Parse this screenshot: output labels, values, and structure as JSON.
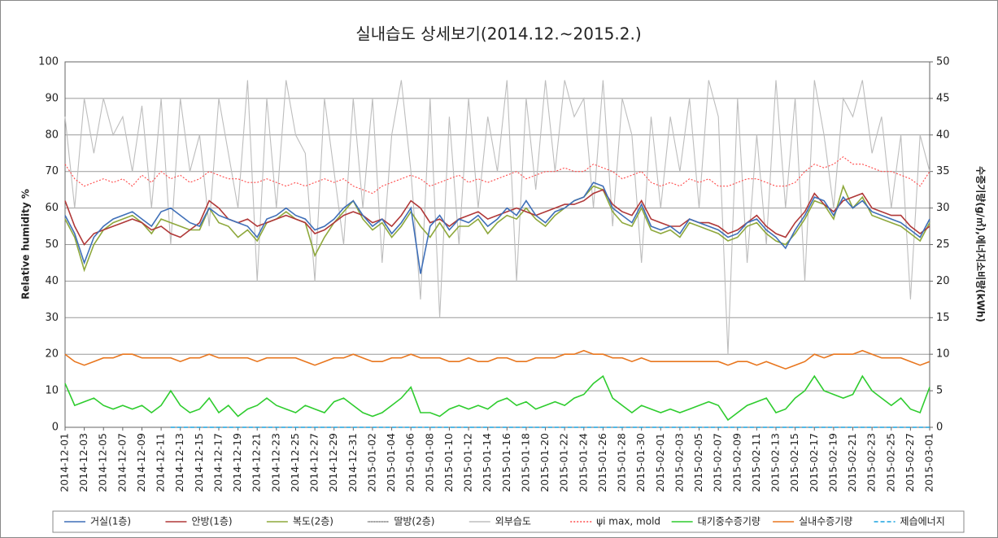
{
  "chart_data": {
    "type": "line",
    "title": "실내습도 상세보기(2014.12.~2015.2.)",
    "y_label": "Relative humidity %",
    "y2_label": "수증기량(g/㎥),에너지소비량(kWh)",
    "ylim": [
      0,
      100
    ],
    "yticks": [
      0,
      10,
      20,
      30,
      40,
      50,
      60,
      70,
      80,
      90,
      100
    ],
    "y2lim": [
      0,
      50
    ],
    "y2ticks": [
      0,
      5,
      10,
      15,
      20,
      25,
      30,
      35,
      40,
      45,
      50
    ],
    "grid": true,
    "legend": "bottom",
    "categories": [
      "2014-12-01",
      null,
      "2014-12-03",
      null,
      "2014-12-05",
      null,
      "2014-12-07",
      null,
      "2014-12-09",
      null,
      "2014-12-11",
      null,
      "2014-12-13",
      null,
      "2014-12-15",
      null,
      "2014-12-17",
      null,
      "2014-12-19",
      null,
      "2014-12-21",
      null,
      "2014-12-23",
      null,
      "2014-12-25",
      null,
      "2014-12-27",
      null,
      "2014-12-29",
      null,
      "2014-12-31",
      null,
      "2015-01-02",
      null,
      "2015-01-04",
      null,
      "2015-01-06",
      null,
      "2015-01-08",
      null,
      "2015-01-10",
      null,
      "2015-01-12",
      null,
      "2015-01-14",
      null,
      "2015-01-16",
      null,
      "2015-01-18",
      null,
      "2015-01-20",
      null,
      "2015-01-22",
      null,
      "2015-01-24",
      null,
      "2015-01-26",
      null,
      "2015-01-28",
      null,
      "2015-01-30",
      null,
      "2015-02-01",
      null,
      "2015-02-03",
      null,
      "2015-02-05",
      null,
      "2015-02-07",
      null,
      "2015-02-09",
      null,
      "2015-02-11",
      null,
      "2015-02-13",
      null,
      "2015-02-15",
      null,
      "2015-02-17",
      null,
      "2015-02-19",
      null,
      "2015-02-21",
      null,
      "2015-02-23",
      null,
      "2015-02-25",
      null,
      "2015-02-27",
      null,
      "2015-03-01"
    ],
    "series": [
      {
        "name": "거실(1층)",
        "color": "#3f6fb8",
        "dash": "none",
        "values": [
          58,
          53,
          45,
          52,
          55,
          57,
          58,
          59,
          57,
          55,
          59,
          60,
          58,
          56,
          55,
          60,
          58,
          57,
          56,
          55,
          52,
          57,
          58,
          60,
          58,
          57,
          54,
          55,
          57,
          60,
          62,
          58,
          55,
          57,
          53,
          56,
          60,
          42,
          55,
          58,
          54,
          57,
          56,
          58,
          55,
          57,
          60,
          58,
          62,
          58,
          56,
          59,
          60,
          62,
          63,
          67,
          66,
          60,
          58,
          56,
          61,
          55,
          54,
          55,
          53,
          57,
          56,
          55,
          54,
          52,
          53,
          56,
          57,
          54,
          52,
          49,
          54,
          58,
          63,
          62,
          58,
          63,
          60,
          62,
          59,
          58,
          57,
          56,
          54,
          52,
          57
        ]
      },
      {
        "name": "안방(1층)",
        "color": "#b03838",
        "dash": "none",
        "values": [
          62,
          55,
          50,
          53,
          54,
          55,
          56,
          57,
          56,
          54,
          55,
          53,
          52,
          54,
          56,
          62,
          60,
          57,
          56,
          57,
          55,
          56,
          57,
          58,
          57,
          56,
          53,
          54,
          56,
          58,
          59,
          58,
          56,
          57,
          55,
          58,
          62,
          60,
          56,
          57,
          55,
          57,
          58,
          59,
          57,
          58,
          59,
          60,
          59,
          58,
          59,
          60,
          61,
          61,
          62,
          64,
          65,
          61,
          59,
          58,
          62,
          57,
          56,
          55,
          55,
          57,
          56,
          56,
          55,
          53,
          54,
          56,
          58,
          55,
          53,
          52,
          56,
          59,
          64,
          61,
          59,
          62,
          63,
          64,
          60,
          59,
          58,
          58,
          55,
          53,
          55
        ]
      },
      {
        "name": "복도(2층)",
        "color": "#8ea83c",
        "dash": "none",
        "values": [
          57,
          52,
          43,
          50,
          54,
          56,
          57,
          58,
          56,
          53,
          57,
          56,
          55,
          54,
          54,
          60,
          56,
          55,
          52,
          54,
          51,
          56,
          57,
          59,
          57,
          56,
          47,
          52,
          56,
          59,
          62,
          57,
          54,
          56,
          52,
          55,
          59,
          55,
          52,
          56,
          52,
          55,
          55,
          57,
          53,
          56,
          58,
          57,
          60,
          57,
          55,
          58,
          60,
          62,
          63,
          66,
          65,
          59,
          56,
          55,
          60,
          54,
          53,
          54,
          52,
          56,
          55,
          54,
          53,
          51,
          52,
          55,
          56,
          53,
          51,
          50,
          53,
          57,
          62,
          61,
          57,
          66,
          60,
          63,
          58,
          57,
          56,
          55,
          53,
          51,
          56
        ]
      },
      {
        "name": "딸방(2층)",
        "color": "#333333",
        "dash": "1 1"
      },
      {
        "name": "외부습도",
        "color": "#bdbdbd",
        "dash": "none",
        "values": [
          85,
          60,
          90,
          75,
          90,
          80,
          85,
          70,
          88,
          60,
          90,
          50,
          90,
          70,
          80,
          55,
          90,
          75,
          60,
          95,
          40,
          90,
          60,
          95,
          80,
          75,
          40,
          90,
          70,
          50,
          90,
          60,
          90,
          45,
          80,
          95,
          70,
          35,
          90,
          30,
          85,
          50,
          90,
          60,
          85,
          70,
          95,
          40,
          90,
          65,
          95,
          70,
          95,
          85,
          90,
          60,
          95,
          55,
          90,
          80,
          45,
          85,
          60,
          85,
          70,
          90,
          60,
          95,
          85,
          20,
          90,
          45,
          80,
          50,
          95,
          60,
          90,
          40,
          95,
          80,
          60,
          90,
          85,
          95,
          75,
          85,
          60,
          80,
          35,
          80,
          70
        ]
      },
      {
        "name": "ψi max, mold",
        "color": "#ff4a4a",
        "dash": "2 2",
        "values": [
          72,
          68,
          66,
          67,
          68,
          67,
          68,
          66,
          69,
          67,
          70,
          68,
          69,
          67,
          68,
          70,
          69,
          68,
          68,
          67,
          67,
          68,
          67,
          66,
          67,
          66,
          67,
          68,
          67,
          68,
          66,
          65,
          64,
          66,
          67,
          68,
          69,
          68,
          66,
          67,
          68,
          69,
          67,
          68,
          67,
          68,
          69,
          70,
          68,
          69,
          70,
          70,
          71,
          70,
          70,
          72,
          71,
          70,
          68,
          69,
          70,
          67,
          66,
          67,
          66,
          68,
          67,
          68,
          66,
          66,
          67,
          68,
          68,
          67,
          66,
          66,
          67,
          70,
          72,
          71,
          72,
          74,
          72,
          72,
          71,
          70,
          70,
          69,
          68,
          66,
          70
        ]
      },
      {
        "name": "대기중수증기량",
        "color": "#2ecc2e",
        "dash": "none",
        "axis": "y2",
        "values": [
          6,
          3,
          3.5,
          4,
          3,
          2.5,
          3,
          2.5,
          3,
          2,
          3,
          5,
          3,
          2,
          2.5,
          4,
          2,
          3,
          1.5,
          2.5,
          3,
          4,
          3,
          2.5,
          2,
          3,
          2.5,
          2,
          3.5,
          4,
          3,
          2,
          1.5,
          2,
          3,
          4,
          5.5,
          2,
          2,
          1.5,
          2.5,
          3,
          2.5,
          3,
          2.5,
          3.5,
          4,
          3,
          3.5,
          2.5,
          3,
          3.5,
          3,
          4,
          4.5,
          6,
          7,
          4,
          3,
          2,
          3,
          2.5,
          2,
          2.5,
          2,
          2.5,
          3,
          3.5,
          3,
          1,
          2,
          3,
          3.5,
          4,
          2,
          2.5,
          4,
          5,
          7,
          5,
          4.5,
          4,
          4.5,
          7,
          5,
          4,
          3,
          4,
          2.5,
          2,
          5.5
        ]
      },
      {
        "name": "실내수증기량",
        "color": "#e8761e",
        "dash": "none",
        "axis": "y2",
        "values": [
          10,
          9,
          8.5,
          9,
          9.5,
          9.5,
          10,
          10,
          9.5,
          9.5,
          9.5,
          9.5,
          9,
          9.5,
          9.5,
          10,
          9.5,
          9.5,
          9.5,
          9.5,
          9,
          9.5,
          9.5,
          9.5,
          9.5,
          9,
          8.5,
          9,
          9.5,
          9.5,
          10,
          9.5,
          9,
          9,
          9.5,
          9.5,
          10,
          9.5,
          9.5,
          9.5,
          9,
          9,
          9.5,
          9,
          9,
          9.5,
          9.5,
          9,
          9,
          9.5,
          9.5,
          9.5,
          10,
          10,
          10.5,
          10,
          10,
          9.5,
          9.5,
          9,
          9.5,
          9,
          9,
          9,
          9,
          9,
          9,
          9,
          9,
          8.5,
          9,
          9,
          8.5,
          9,
          8.5,
          8,
          8.5,
          9,
          10,
          9.5,
          10,
          10,
          10,
          10.5,
          10,
          9.5,
          9.5,
          9.5,
          9,
          8.5,
          9
        ]
      },
      {
        "name": "제습에너지",
        "color": "#1aa3e0",
        "dash": "5 3",
        "axis": "y2",
        "values": [
          null,
          null,
          null,
          null,
          null,
          null,
          null,
          null,
          null,
          null,
          null,
          0,
          0,
          0,
          0,
          0,
          0,
          0,
          0,
          0,
          0,
          0,
          0,
          0,
          0,
          0,
          0,
          0,
          0,
          0,
          0,
          0,
          0,
          0,
          0,
          0,
          0,
          0,
          0,
          0,
          0,
          0,
          0,
          0,
          0,
          0,
          0,
          0,
          0,
          0,
          0,
          0,
          0,
          0,
          0,
          0,
          0,
          0,
          0,
          0,
          0,
          0,
          0,
          0,
          0,
          0,
          0,
          0,
          0,
          0,
          0,
          0,
          0,
          0,
          0,
          0,
          0,
          0,
          0,
          0,
          0,
          0,
          0,
          0,
          0,
          0,
          0,
          0,
          0,
          0,
          0
        ]
      }
    ]
  }
}
